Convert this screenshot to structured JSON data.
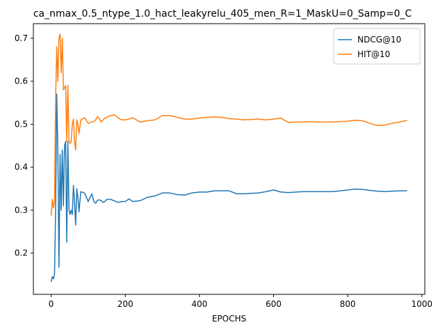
{
  "chart_data": {
    "type": "line",
    "title": "ca_nmax_0.5_ntype_1.0_hact_leakyrelu_405_men_R=1_MaskU=0_Samp=0_C",
    "xlabel": "EPOCHS",
    "ylabel": "",
    "xlim": [
      -48,
      1008
    ],
    "ylim": [
      0.104,
      0.734
    ],
    "xticks": [
      0,
      200,
      400,
      600,
      800,
      1000
    ],
    "xtick_labels": [
      "0",
      "200",
      "400",
      "600",
      "800",
      "1000"
    ],
    "yticks": [
      0.2,
      0.3,
      0.4,
      0.5,
      0.6,
      0.7
    ],
    "ytick_labels": [
      "0.2",
      "0.3",
      "0.4",
      "0.5",
      "0.6",
      "0.7"
    ],
    "grid": false,
    "legend_position": "upper right",
    "series": [
      {
        "name": "NDCG@10",
        "color": "#1f77b4",
        "x": [
          0,
          3,
          6,
          9,
          12,
          15,
          18,
          21,
          24,
          27,
          30,
          33,
          36,
          39,
          42,
          45,
          48,
          51,
          54,
          57,
          60,
          63,
          66,
          69,
          72,
          75,
          80,
          90,
          100,
          110,
          115,
          120,
          125,
          130,
          135,
          140,
          145,
          150,
          160,
          170,
          180,
          190,
          200,
          210,
          220,
          240,
          260,
          280,
          300,
          320,
          340,
          360,
          380,
          400,
          420,
          440,
          460,
          480,
          500,
          520,
          540,
          560,
          580,
          600,
          620,
          640,
          660,
          680,
          700,
          720,
          740,
          760,
          780,
          800,
          820,
          840,
          860,
          880,
          900,
          920,
          940,
          960
        ],
        "y": [
          0.133,
          0.145,
          0.14,
          0.15,
          0.3,
          0.57,
          0.44,
          0.167,
          0.43,
          0.3,
          0.44,
          0.31,
          0.45,
          0.46,
          0.226,
          0.46,
          0.3,
          0.29,
          0.3,
          0.29,
          0.358,
          0.32,
          0.265,
          0.35,
          0.33,
          0.296,
          0.343,
          0.34,
          0.32,
          0.338,
          0.32,
          0.316,
          0.323,
          0.324,
          0.322,
          0.318,
          0.32,
          0.325,
          0.325,
          0.322,
          0.318,
          0.32,
          0.32,
          0.326,
          0.32,
          0.322,
          0.33,
          0.333,
          0.34,
          0.34,
          0.336,
          0.335,
          0.34,
          0.342,
          0.342,
          0.345,
          0.345,
          0.345,
          0.338,
          0.338,
          0.339,
          0.34,
          0.343,
          0.347,
          0.342,
          0.341,
          0.342,
          0.343,
          0.343,
          0.343,
          0.343,
          0.343,
          0.345,
          0.347,
          0.349,
          0.348,
          0.346,
          0.344,
          0.343,
          0.344,
          0.345,
          0.345
        ]
      },
      {
        "name": "HIT@10",
        "color": "#ff7f0e",
        "x": [
          0,
          3,
          6,
          9,
          12,
          15,
          18,
          21,
          24,
          27,
          30,
          33,
          36,
          39,
          42,
          45,
          48,
          51,
          54,
          57,
          60,
          63,
          66,
          69,
          72,
          75,
          80,
          90,
          100,
          110,
          115,
          120,
          125,
          130,
          135,
          140,
          145,
          150,
          160,
          170,
          180,
          190,
          200,
          210,
          220,
          240,
          260,
          280,
          300,
          320,
          340,
          360,
          380,
          400,
          420,
          440,
          460,
          480,
          500,
          520,
          540,
          560,
          580,
          600,
          620,
          640,
          660,
          680,
          700,
          720,
          740,
          760,
          780,
          800,
          820,
          840,
          860,
          880,
          900,
          920,
          940,
          960
        ],
        "y": [
          0.287,
          0.325,
          0.305,
          0.32,
          0.56,
          0.68,
          0.6,
          0.7,
          0.71,
          0.62,
          0.7,
          0.58,
          0.585,
          0.59,
          0.46,
          0.59,
          0.46,
          0.455,
          0.46,
          0.5,
          0.512,
          0.46,
          0.44,
          0.51,
          0.5,
          0.478,
          0.51,
          0.515,
          0.502,
          0.505,
          0.506,
          0.51,
          0.518,
          0.513,
          0.505,
          0.51,
          0.514,
          0.516,
          0.52,
          0.522,
          0.515,
          0.51,
          0.51,
          0.512,
          0.515,
          0.505,
          0.508,
          0.51,
          0.52,
          0.52,
          0.516,
          0.512,
          0.512,
          0.514,
          0.516,
          0.517,
          0.516,
          0.513,
          0.512,
          0.51,
          0.511,
          0.512,
          0.51,
          0.512,
          0.514,
          0.504,
          0.505,
          0.505,
          0.506,
          0.505,
          0.505,
          0.505,
          0.506,
          0.507,
          0.509,
          0.508,
          0.502,
          0.497,
          0.498,
          0.502,
          0.505,
          0.509
        ]
      }
    ]
  }
}
